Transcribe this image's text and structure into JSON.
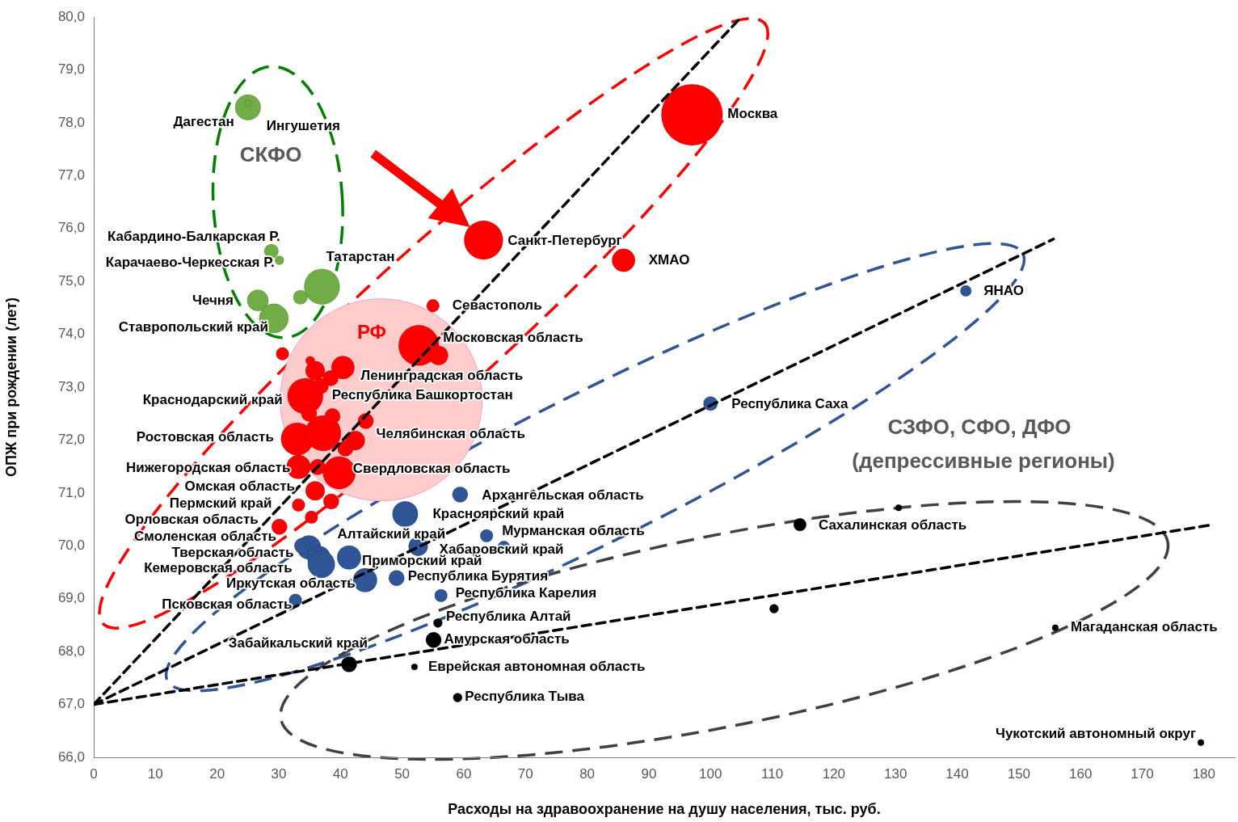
{
  "chart_data": {
    "type": "bubble",
    "xlabel": "Расходы на здравоохранение на душу населения, тыс. руб.",
    "ylabel": "ОПЖ при рождении (лет)",
    "xlim": [
      0,
      185
    ],
    "xticks": [
      0,
      10,
      20,
      30,
      40,
      50,
      60,
      70,
      80,
      90,
      100,
      110,
      120,
      130,
      140,
      150,
      160,
      170,
      180
    ],
    "ylim": [
      66,
      80
    ],
    "yticks": [
      {
        "value": 66,
        "label": "66,0"
      },
      {
        "value": 67,
        "label": "67,0"
      },
      {
        "value": 68,
        "label": "68,0"
      },
      {
        "value": 69,
        "label": "69,0"
      },
      {
        "value": 70,
        "label": "70,0"
      },
      {
        "value": 71,
        "label": "71,0"
      },
      {
        "value": 72,
        "label": "72,0"
      },
      {
        "value": 73,
        "label": "73,0"
      },
      {
        "value": 74,
        "label": "74,0"
      },
      {
        "value": 75,
        "label": "75,0"
      },
      {
        "value": 76,
        "label": "76,0"
      },
      {
        "value": 77,
        "label": "77,0"
      },
      {
        "value": 78,
        "label": "78,0"
      },
      {
        "value": 79,
        "label": "79,0"
      },
      {
        "value": 80,
        "label": "80,0"
      }
    ],
    "grid": false,
    "legend": false,
    "series": [
      {
        "type": "bubble",
        "color": "#ffcccc",
        "x": [
          46.6
        ],
        "values": [
          72.76
        ],
        "sizes": [
          1
        ]
      },
      {
        "type": "bubble",
        "color": "#70ad47",
        "x": [
          25.0,
          25.0,
          28.8,
          30.1,
          37.0,
          33.5,
          26.6,
          29.2
        ],
        "values": [
          78.29,
          78.37,
          75.57,
          75.4,
          74.9,
          74.7,
          74.64,
          74.3
        ],
        "sizes": [
          0.016,
          0.001,
          0.005,
          0.002,
          0.031,
          0.005,
          0.011,
          0.021
        ]
      },
      {
        "type": "bubble",
        "color": "#ff0000",
        "x": [
          97.0,
          63.2,
          85.9,
          55.0,
          52.7,
          55.9,
          40.4,
          30.6,
          34.3,
          35.9,
          35.1,
          38.4,
          36.8,
          33.0,
          37.2,
          34.9,
          38.7,
          44.1,
          42.4,
          40.8,
          33.2,
          39.8,
          36.3,
          35.9,
          38.5,
          33.2,
          35.3,
          30.1
        ],
        "values": [
          78.15,
          75.78,
          75.4,
          74.54,
          73.79,
          73.6,
          73.37,
          73.63,
          72.83,
          73.31,
          73.5,
          73.17,
          73.02,
          72.02,
          72.13,
          72.5,
          72.45,
          72.36,
          71.99,
          71.84,
          71.49,
          71.38,
          71.49,
          71.04,
          70.84,
          70.77,
          70.54,
          70.36
        ],
        "sizes": [
          0.092,
          0.037,
          0.013,
          0.004,
          0.04,
          0.009,
          0.013,
          0.004,
          0.031,
          0.009,
          0.002,
          0.006,
          0.006,
          0.026,
          0.031,
          0.006,
          0.006,
          0.006,
          0.009,
          0.006,
          0.014,
          0.026,
          0.006,
          0.009,
          0.006,
          0.004,
          0.004,
          0.006
        ]
      },
      {
        "type": "bubble",
        "color": "#2f5597",
        "x": [
          141.4,
          100.0,
          59.4,
          50.5,
          63.7,
          66.5,
          52.6,
          34.9,
          36.5,
          33.8,
          36.9,
          41.4,
          44.0,
          49.1,
          56.3,
          32.7
        ],
        "values": [
          74.82,
          72.69,
          70.97,
          70.6,
          70.19,
          69.97,
          69.99,
          69.97,
          69.78,
          70.0,
          69.65,
          69.78,
          69.35,
          69.39,
          69.06,
          68.97
        ],
        "sizes": [
          0.003,
          0.005,
          0.006,
          0.016,
          0.004,
          0.004,
          0.009,
          0.014,
          0.013,
          0.006,
          0.018,
          0.014,
          0.014,
          0.006,
          0.004,
          0.004
        ]
      },
      {
        "type": "bubble",
        "color": "#000000",
        "x": [
          114.5,
          130.5,
          110.3,
          155.9,
          179.5,
          55.8,
          55.1,
          52.0,
          59.0,
          41.4
        ],
        "values": [
          70.4,
          70.72,
          68.81,
          68.45,
          66.28,
          68.54,
          68.22,
          67.71,
          67.13,
          67.76
        ],
        "sizes": [
          0.004,
          0.001,
          0.002,
          0.001,
          0.001,
          0.002,
          0.006,
          0.001,
          0.002,
          0.006
        ]
      },
      {
        "type": "line",
        "color": "#000000",
        "line_style": "dashed",
        "x": [
          0,
          105
        ],
        "values": [
          67,
          80
        ]
      },
      {
        "type": "line",
        "color": "#000000",
        "line_style": "dashed",
        "x": [
          0,
          155.6
        ],
        "values": [
          67,
          75.8
        ]
      },
      {
        "type": "line",
        "color": "#000000",
        "line_style": "dashed",
        "x": [
          0,
          181.5
        ],
        "values": [
          67,
          70.4
        ]
      }
    ],
    "annotations": [
      {
        "text": "Дагестан",
        "x": 25.0,
        "y": 78.29
      },
      {
        "text": "Ингушетия",
        "x": 25.0,
        "y": 78.37
      },
      {
        "text": "Кабардино-Балкарская Р.",
        "x": 28.8,
        "y": 75.57
      },
      {
        "text": "Карачаево-Черкесская Р.",
        "x": 30.1,
        "y": 75.4
      },
      {
        "text": "Татарстан",
        "x": 37.0,
        "y": 74.9
      },
      {
        "text": "Чечня",
        "x": 26.6,
        "y": 74.64
      },
      {
        "text": "Ставропольский край",
        "x": 29.2,
        "y": 74.3
      },
      {
        "text": "Москва",
        "x": 97.0,
        "y": 78.15
      },
      {
        "text": "Санкт-Петербург",
        "x": 63.2,
        "y": 75.78
      },
      {
        "text": "ХМАО",
        "x": 85.9,
        "y": 75.4
      },
      {
        "text": "Севастополь",
        "x": 55.0,
        "y": 74.54
      },
      {
        "text": "Московская область",
        "x": 52.7,
        "y": 73.79
      },
      {
        "text": "Ленинградская область",
        "x": 40.4,
        "y": 73.37
      },
      {
        "text": "Республика Башкортостан",
        "x": 36.8,
        "y": 73.02
      },
      {
        "text": "Краснодарский край",
        "x": 34.3,
        "y": 72.83
      },
      {
        "text": "Челябинская область",
        "x": 44.1,
        "y": 72.36
      },
      {
        "text": "Ростовская область",
        "x": 33.0,
        "y": 72.02
      },
      {
        "text": "Нижегородская область",
        "x": 33.2,
        "y": 71.49
      },
      {
        "text": "Свердловская область",
        "x": 39.8,
        "y": 71.38
      },
      {
        "text": "Омская область",
        "x": 35.9,
        "y": 71.04
      },
      {
        "text": "Пермский край",
        "x": 33.2,
        "y": 70.77
      },
      {
        "text": "Орловская область",
        "x": 30.1,
        "y": 70.36
      },
      {
        "text": "Смоленская область",
        "x": 33.8,
        "y": 70.0
      },
      {
        "text": "Тверская область",
        "x": 34.9,
        "y": 69.97
      },
      {
        "text": "Кемеровская область",
        "x": 36.9,
        "y": 69.65
      },
      {
        "text": "Иркутская область",
        "x": 44.0,
        "y": 69.35
      },
      {
        "text": "Псковская область",
        "x": 32.7,
        "y": 68.97
      },
      {
        "text": "ЯНАО",
        "x": 141.4,
        "y": 74.82
      },
      {
        "text": "Республика Саха",
        "x": 100.0,
        "y": 72.69
      },
      {
        "text": "Архангельская область",
        "x": 59.4,
        "y": 70.97
      },
      {
        "text": "Красноярский край",
        "x": 50.5,
        "y": 70.6
      },
      {
        "text": "Мурманская область",
        "x": 63.7,
        "y": 70.19
      },
      {
        "text": "Алтайский край",
        "x": 52.6,
        "y": 69.99
      },
      {
        "text": "Хабаровский край",
        "x": 66.5,
        "y": 69.97
      },
      {
        "text": "Приморский край",
        "x": 41.4,
        "y": 69.78
      },
      {
        "text": "Республика Бурятия",
        "x": 49.1,
        "y": 69.39
      },
      {
        "text": "Республика Карелия",
        "x": 56.3,
        "y": 69.06
      },
      {
        "text": "Сахалинская область",
        "x": 114.5,
        "y": 70.4
      },
      {
        "text": "Магаданская область",
        "x": 155.9,
        "y": 68.45
      },
      {
        "text": "Чукотский автономный округ",
        "x": 179.5,
        "y": 66.28
      },
      {
        "text": "Республика Алтай",
        "x": 55.8,
        "y": 68.54
      },
      {
        "text": "Амурская область",
        "x": 55.1,
        "y": 68.22
      },
      {
        "text": "Еврейская автономная область",
        "x": 52.0,
        "y": 67.71
      },
      {
        "text": "Республика Тыва",
        "x": 59.0,
        "y": 67.13
      },
      {
        "text": "Забайкальский край",
        "x": 41.4,
        "y": 67.76
      },
      "СКФО",
      "РФ",
      "СЗФО, СФО, ДФО",
      "(депрессивные регионы)"
    ]
  }
}
